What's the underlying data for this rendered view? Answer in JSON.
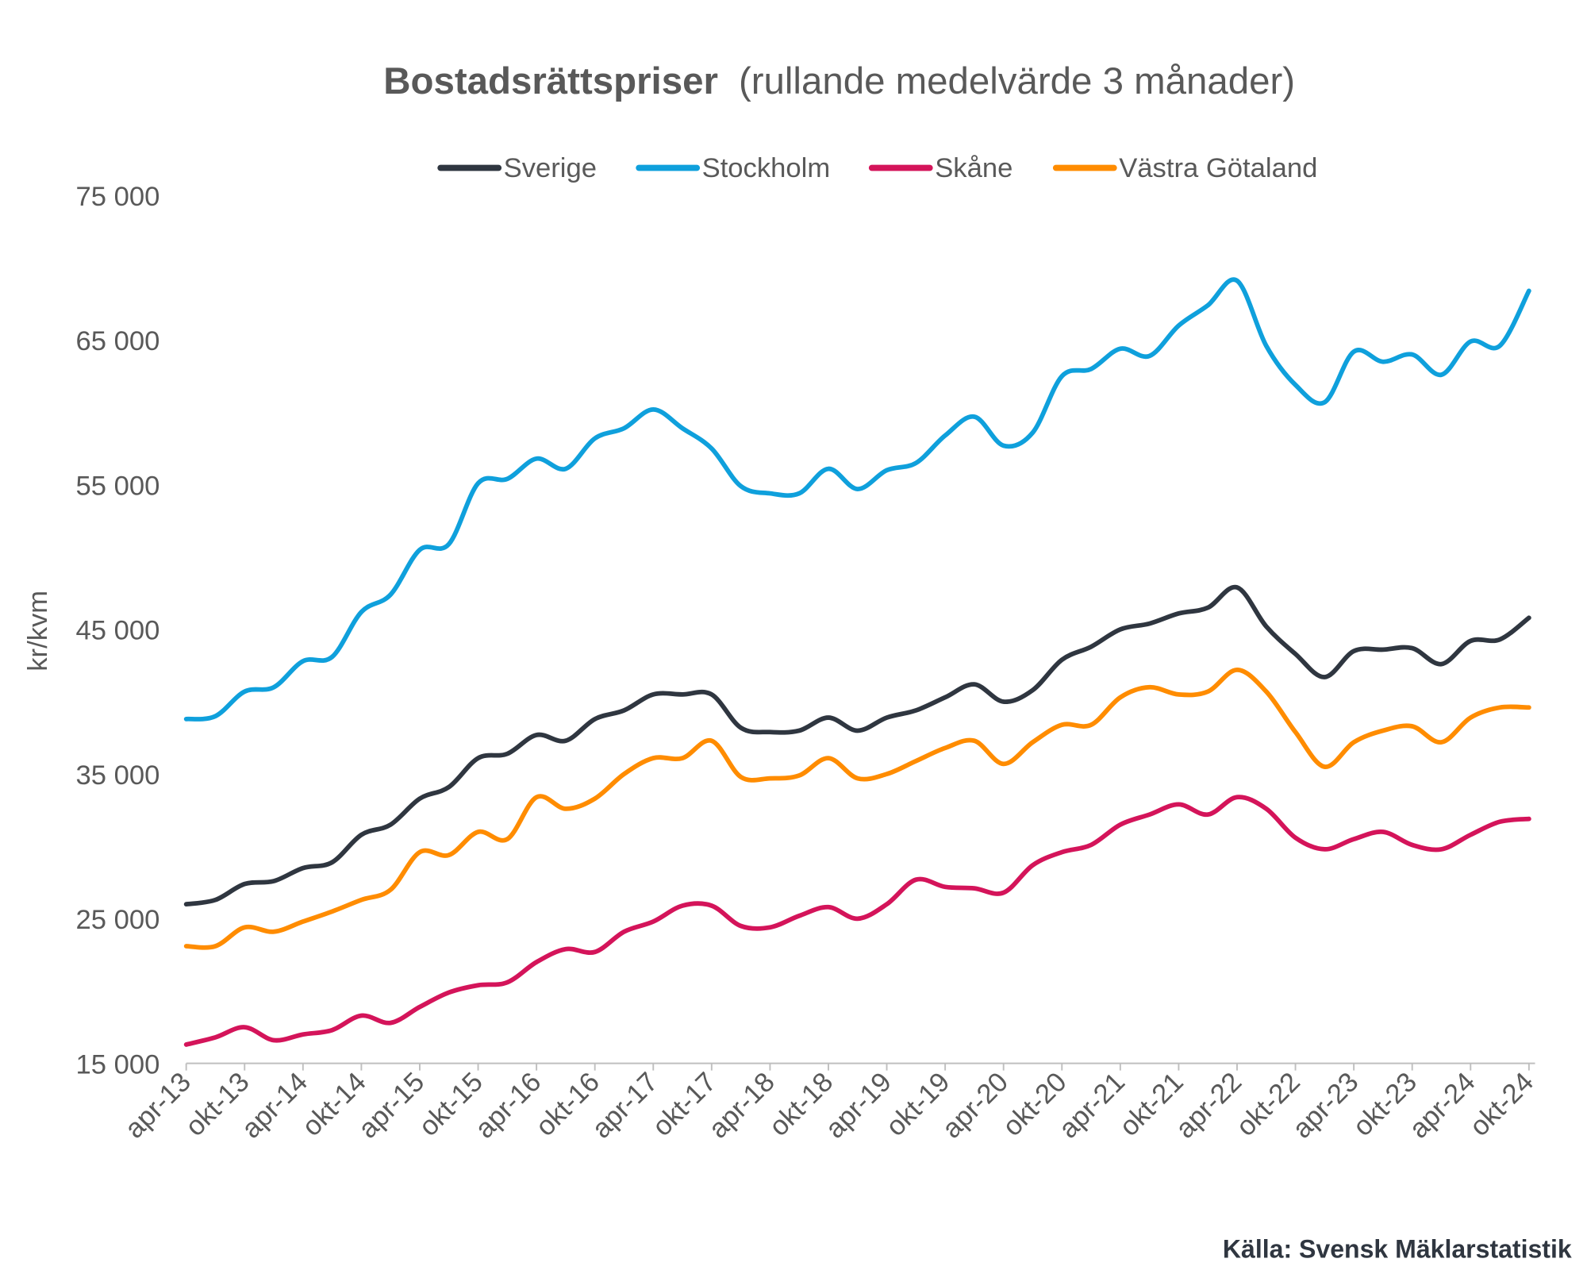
{
  "chart_data": {
    "type": "line",
    "title_bold": "Bostadsrättspriser",
    "title_rest": "(rullande medelvärde 3 månader)",
    "ylabel": "kr/kvm",
    "xlabel": "",
    "ylim": [
      15000,
      75000
    ],
    "yticks": [
      15000,
      25000,
      35000,
      45000,
      55000,
      65000,
      75000
    ],
    "ytick_labels": [
      "15 000",
      "25 000",
      "35 000",
      "45 000",
      "55 000",
      "65 000",
      "75 000"
    ],
    "x_unit": "months since apr-13 (quarterly samples)",
    "x": [
      0,
      3,
      6,
      9,
      12,
      15,
      18,
      21,
      24,
      27,
      30,
      33,
      36,
      39,
      42,
      45,
      48,
      51,
      54,
      57,
      60,
      63,
      66,
      69,
      72,
      75,
      78,
      81,
      84,
      87,
      90,
      93,
      96,
      99,
      102,
      105,
      108,
      111,
      114,
      117,
      120,
      123,
      126,
      129,
      132,
      135,
      138
    ],
    "xtick_labels": [
      "apr-13",
      "okt-13",
      "apr-14",
      "okt-14",
      "apr-15",
      "okt-15",
      "apr-16",
      "okt-16",
      "apr-17",
      "okt-17",
      "apr-18",
      "okt-18",
      "apr-19",
      "okt-19",
      "apr-20",
      "okt-20",
      "apr-21",
      "okt-21",
      "apr-22",
      "okt-22",
      "apr-23",
      "okt-23",
      "apr-24",
      "okt-24"
    ],
    "legend_position": "top-center",
    "grid": false,
    "series": [
      {
        "name": "Sverige",
        "color": "#2f3640",
        "values": [
          26000,
          26300,
          27400,
          27600,
          28500,
          28900,
          30800,
          31500,
          33300,
          34100,
          36100,
          36400,
          37700,
          37300,
          38800,
          39400,
          40500,
          40500,
          40500,
          38200,
          37900,
          38000,
          38900,
          38000,
          38900,
          39400,
          40300,
          41200,
          40000,
          40800,
          42900,
          43800,
          45000,
          45400,
          46100,
          46500,
          47900,
          45200,
          43300,
          41700,
          43500,
          43600,
          43700,
          42600,
          44200,
          44300,
          45800
        ]
      },
      {
        "name": "Stockholm",
        "color": "#0fa0dc",
        "values": [
          38800,
          39000,
          40700,
          41000,
          42800,
          43100,
          46200,
          47400,
          50500,
          50900,
          55100,
          55400,
          56800,
          56100,
          58200,
          58900,
          60200,
          58900,
          57500,
          54900,
          54400,
          54400,
          56100,
          54700,
          56000,
          56500,
          58400,
          59700,
          57700,
          58600,
          62500,
          63000,
          64400,
          63900,
          66000,
          67400,
          69100,
          64600,
          61900,
          60700,
          64200,
          63500,
          64000,
          62600,
          64900,
          64600,
          68400
        ]
      },
      {
        "name": "Skåne",
        "color": "#d4145a",
        "values": [
          16300,
          16800,
          17500,
          16600,
          17000,
          17300,
          18300,
          17800,
          18900,
          19900,
          20400,
          20600,
          22000,
          22900,
          22700,
          24100,
          24800,
          25900,
          25900,
          24500,
          24400,
          25200,
          25800,
          25000,
          26000,
          27700,
          27200,
          27100,
          26800,
          28700,
          29600,
          30100,
          31500,
          32200,
          32900,
          32200,
          33400,
          32600,
          30600,
          29800,
          30500,
          31000,
          30100,
          29800,
          30800,
          31700,
          31900
        ]
      },
      {
        "name": "Västra Götaland",
        "color": "#ff8c00",
        "values": [
          23100,
          23100,
          24400,
          24100,
          24800,
          25500,
          26300,
          27000,
          29600,
          29400,
          31000,
          30500,
          33400,
          32600,
          33300,
          35000,
          36100,
          36100,
          37300,
          34800,
          34700,
          34900,
          36100,
          34700,
          35000,
          35900,
          36800,
          37300,
          35700,
          37200,
          38400,
          38400,
          40300,
          41000,
          40500,
          40700,
          42200,
          40700,
          37900,
          35500,
          37200,
          38000,
          38300,
          37200,
          38900,
          39600,
          39600
        ]
      }
    ]
  },
  "source": "Källa: Svensk Mäklarstatistik"
}
